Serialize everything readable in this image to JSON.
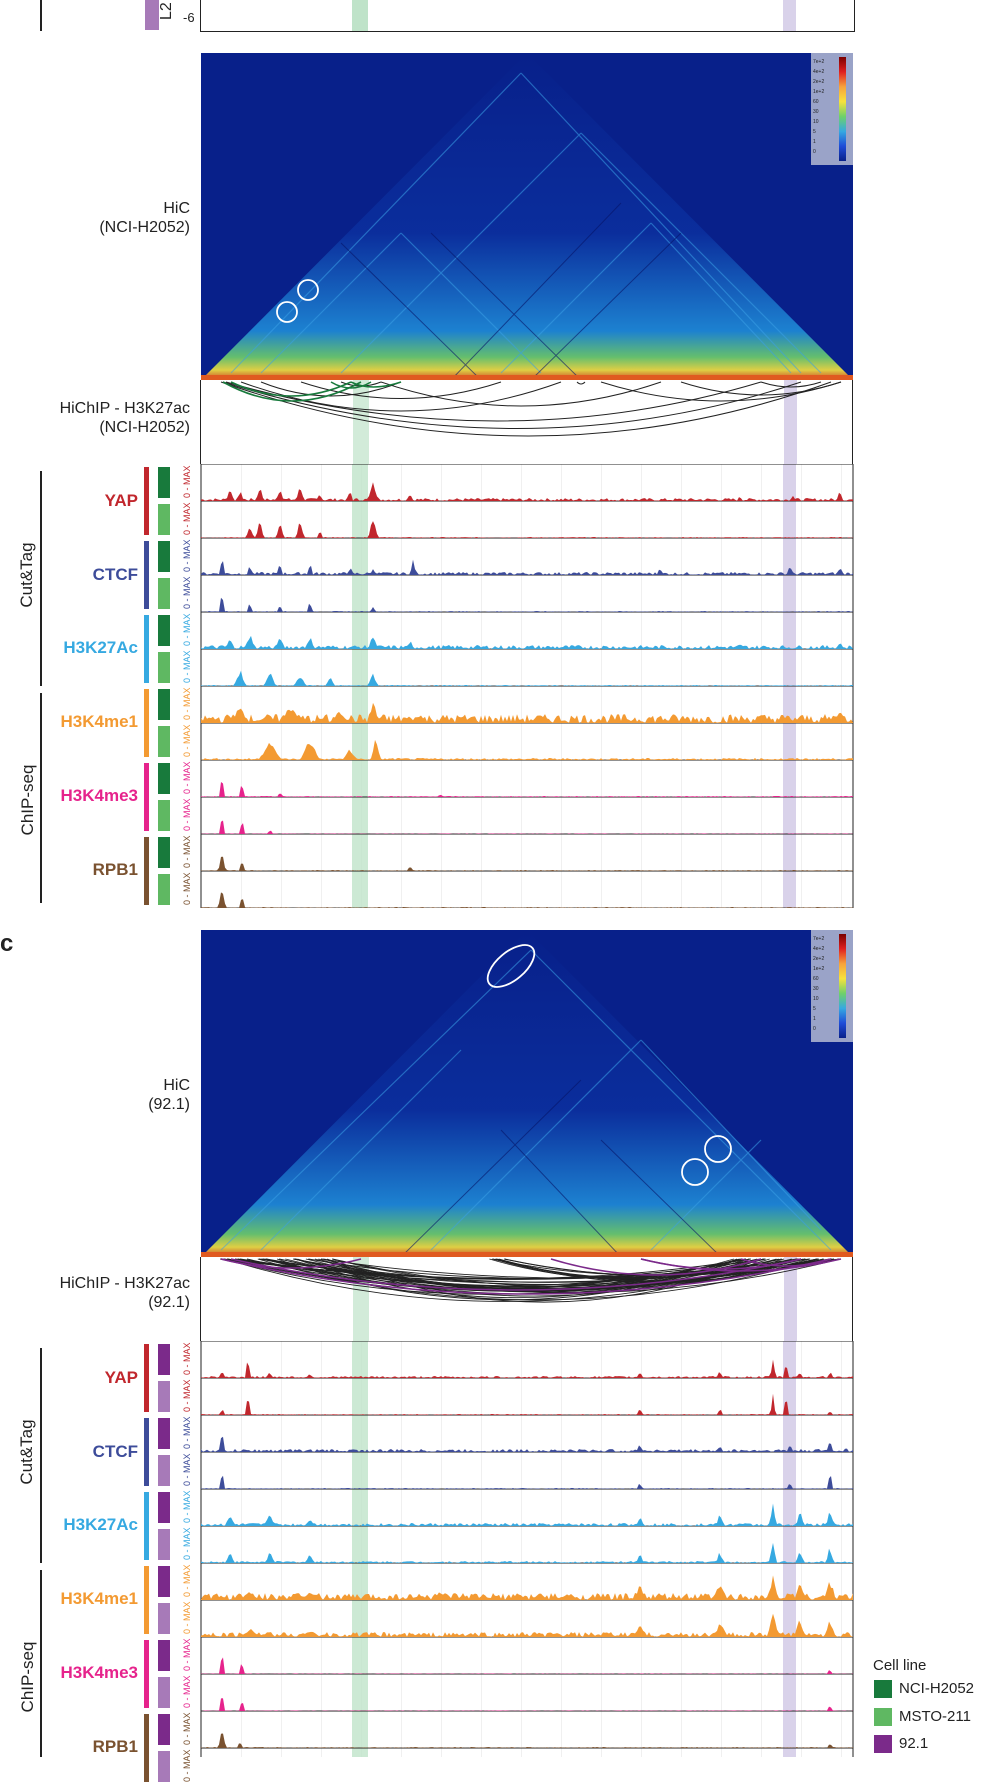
{
  "colors": {
    "yap": "#c1272d",
    "ctcf": "#3d4c9a",
    "h3k27ac": "#36a9e1",
    "h3k4me1": "#f39a32",
    "h3k4me3": "#e6238c",
    "rpb1": "#7a5230",
    "nci": "#187a3c",
    "msto": "#5fb862",
    "c92": "#7b2a8a",
    "c92light": "#a77ab8",
    "greenHL": "#bfe3c9",
    "purpleHL": "#d9d2ea",
    "hicBg": "#0a1f8c"
  },
  "top_partial": {
    "label": "L2",
    "tick": "-6"
  },
  "panel_c_letter": "c",
  "hic_b": {
    "label_line1": "HiC",
    "label_line2": "(NCI-H2052)"
  },
  "hichip_b": {
    "label_line1": "HiChIP - H3K27ac",
    "label_line2": "(NCI-H2052)"
  },
  "hic_c": {
    "label_line1": "HiC",
    "label_line2": "(92.1)"
  },
  "hichip_c": {
    "label_line1": "HiChIP - H3K27ac",
    "label_line2": "(92.1)"
  },
  "groups": {
    "cuttag": "Cut&Tag",
    "chipseq": "ChIP-seq"
  },
  "marks": {
    "yap": "YAP",
    "ctcf": "CTCF",
    "h3k27ac": "H3K27Ac",
    "h3k4me1": "H3K4me1",
    "h3k4me3": "H3K4me3",
    "rpb1": "RPB1"
  },
  "range_label": "0 - MAX",
  "colorbar_ticks": [
    "7e+2",
    "4e+2",
    "2e+2",
    "1e+2",
    "60",
    "30",
    "10",
    "5",
    "1",
    "0"
  ],
  "legend": {
    "title": "Cell line",
    "items": [
      {
        "name": "NCI-H2052",
        "color": "#187a3c"
      },
      {
        "name": "MSTO-211",
        "color": "#5fb862"
      },
      {
        "name": "92.1",
        "color": "#7b2a8a"
      }
    ]
  }
}
